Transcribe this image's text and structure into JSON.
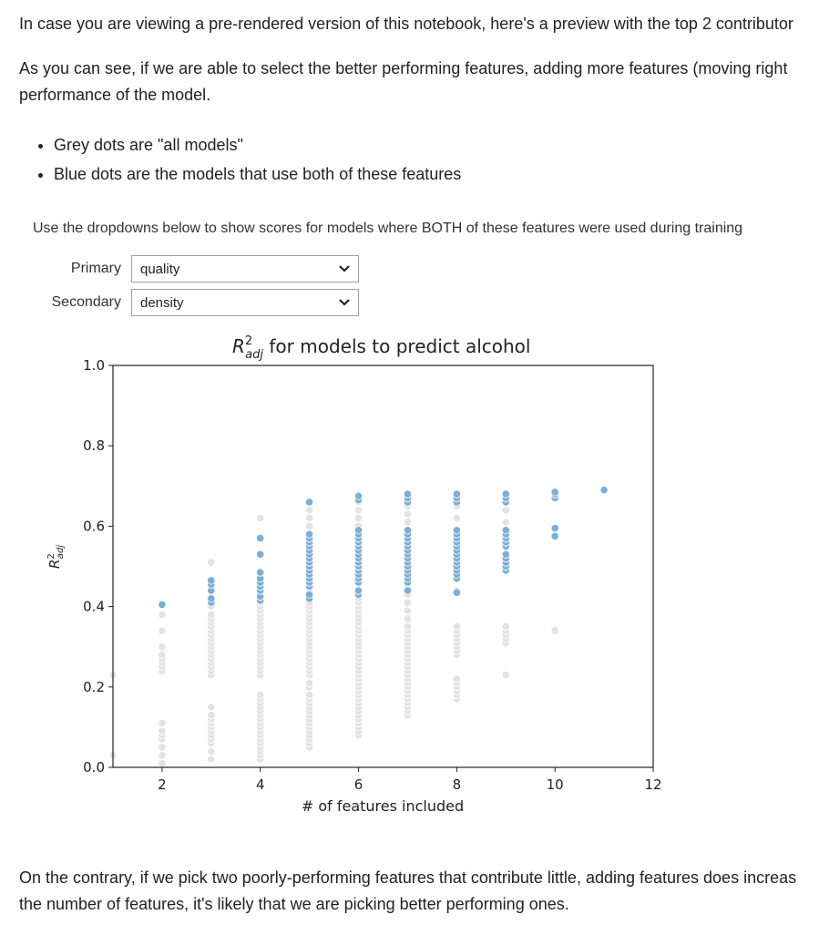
{
  "intro": "In case you are viewing a pre-rendered version of this notebook, here's a preview with the top 2 contributor",
  "view": {
    "line1": "As you can see, if we are able to select the better performing features, adding more features (moving right ",
    "line2": "performance of the model."
  },
  "bullets": [
    "Grey dots are \"all models\"",
    "Blue dots are the models that use both of these features"
  ],
  "widget": {
    "description": "Use the dropdowns below to show scores for models where BOTH of these features were used during training",
    "primary": {
      "label": "Primary",
      "value": "quality"
    },
    "secondary": {
      "label": "Secondary",
      "value": "density"
    }
  },
  "colors": {
    "blue_dot": "#7bafd8",
    "grey_dot": "#e3e3e3"
  },
  "chart_data": {
    "type": "scatter",
    "title_math": "R",
    "title_sup": "2",
    "title_sub": "adj",
    "title_rest": " for models to predict alcohol",
    "ylabel_main": "R",
    "ylabel_sup": "2",
    "ylabel_sub": "adj",
    "xlabel": "# of features included",
    "xlim": [
      1,
      12
    ],
    "ylim": [
      0,
      1
    ],
    "x_ticks": [
      "2",
      "4",
      "6",
      "8",
      "10",
      "12"
    ],
    "y_ticks": [
      "0.0",
      "0.2",
      "0.4",
      "0.6",
      "0.8",
      "1.0"
    ],
    "grid": false,
    "legend": "none",
    "series": [
      {
        "color_key": "grey_dot",
        "points_by_x": {
          "1": [
            0.03,
            0.23
          ],
          "2": [
            0.01,
            0.03,
            0.05,
            0.07,
            0.08,
            0.09,
            0.11,
            0.24,
            0.25,
            0.26,
            0.27,
            0.28,
            0.3,
            0.34,
            0.38
          ],
          "3": [
            0.02,
            0.04,
            0.06,
            0.07,
            0.08,
            0.09,
            0.1,
            0.11,
            0.12,
            0.13,
            0.15,
            0.23,
            0.24,
            0.25,
            0.26,
            0.27,
            0.28,
            0.29,
            0.3,
            0.31,
            0.32,
            0.33,
            0.34,
            0.35,
            0.36,
            0.37,
            0.38,
            0.4,
            0.51
          ],
          "4": [
            0.02,
            0.03,
            0.04,
            0.05,
            0.06,
            0.07,
            0.08,
            0.09,
            0.1,
            0.11,
            0.12,
            0.13,
            0.14,
            0.15,
            0.16,
            0.17,
            0.18,
            0.23,
            0.24,
            0.25,
            0.26,
            0.27,
            0.28,
            0.29,
            0.3,
            0.31,
            0.32,
            0.33,
            0.34,
            0.35,
            0.36,
            0.37,
            0.38,
            0.39,
            0.4,
            0.41,
            0.62
          ],
          "5": [
            0.05,
            0.06,
            0.07,
            0.08,
            0.09,
            0.1,
            0.11,
            0.12,
            0.13,
            0.14,
            0.15,
            0.16,
            0.17,
            0.18,
            0.2,
            0.21,
            0.23,
            0.24,
            0.25,
            0.26,
            0.27,
            0.28,
            0.29,
            0.3,
            0.31,
            0.32,
            0.33,
            0.34,
            0.35,
            0.36,
            0.37,
            0.38,
            0.39,
            0.4,
            0.41,
            0.42,
            0.44,
            0.46,
            0.48,
            0.5,
            0.52,
            0.54,
            0.56,
            0.58,
            0.6,
            0.62,
            0.64
          ],
          "6": [
            0.08,
            0.09,
            0.1,
            0.11,
            0.12,
            0.13,
            0.14,
            0.15,
            0.16,
            0.17,
            0.18,
            0.19,
            0.2,
            0.21,
            0.22,
            0.23,
            0.24,
            0.25,
            0.26,
            0.27,
            0.28,
            0.29,
            0.3,
            0.31,
            0.32,
            0.33,
            0.34,
            0.35,
            0.36,
            0.37,
            0.38,
            0.39,
            0.4,
            0.41,
            0.42,
            0.44,
            0.46,
            0.48,
            0.5,
            0.52,
            0.54,
            0.56,
            0.58,
            0.6,
            0.62,
            0.64,
            0.66
          ],
          "7": [
            0.13,
            0.14,
            0.15,
            0.16,
            0.17,
            0.18,
            0.19,
            0.2,
            0.21,
            0.22,
            0.23,
            0.24,
            0.25,
            0.26,
            0.27,
            0.28,
            0.29,
            0.3,
            0.31,
            0.32,
            0.33,
            0.34,
            0.35,
            0.37,
            0.39,
            0.41,
            0.43,
            0.45,
            0.47,
            0.49,
            0.51,
            0.53,
            0.55,
            0.57,
            0.59,
            0.61,
            0.63,
            0.65,
            0.67
          ],
          "8": [
            0.17,
            0.18,
            0.19,
            0.2,
            0.21,
            0.22,
            0.28,
            0.29,
            0.3,
            0.31,
            0.32,
            0.33,
            0.34,
            0.35,
            0.44,
            0.47,
            0.5,
            0.53,
            0.56,
            0.59,
            0.62,
            0.65,
            0.68
          ],
          "9": [
            0.23,
            0.31,
            0.32,
            0.33,
            0.34,
            0.35,
            0.52,
            0.55,
            0.58,
            0.61,
            0.64,
            0.67
          ],
          "10": [
            0.34,
            0.67,
            0.68
          ]
        }
      },
      {
        "color_key": "blue_dot",
        "points_by_x": {
          "2": [
            0.405
          ],
          "3": [
            0.41,
            0.42,
            0.44,
            0.455,
            0.465
          ],
          "4": [
            0.415,
            0.425,
            0.44,
            0.45,
            0.46,
            0.47,
            0.485,
            0.53,
            0.57
          ],
          "5": [
            0.42,
            0.43,
            0.45,
            0.46,
            0.47,
            0.48,
            0.49,
            0.5,
            0.51,
            0.52,
            0.53,
            0.54,
            0.55,
            0.56,
            0.57,
            0.58,
            0.66
          ],
          "6": [
            0.43,
            0.44,
            0.46,
            0.47,
            0.48,
            0.49,
            0.5,
            0.51,
            0.52,
            0.53,
            0.54,
            0.55,
            0.56,
            0.57,
            0.58,
            0.59,
            0.665,
            0.675
          ],
          "7": [
            0.44,
            0.46,
            0.47,
            0.48,
            0.49,
            0.5,
            0.51,
            0.52,
            0.53,
            0.54,
            0.55,
            0.56,
            0.57,
            0.58,
            0.59,
            0.66,
            0.67,
            0.68
          ],
          "8": [
            0.435,
            0.47,
            0.48,
            0.49,
            0.5,
            0.51,
            0.52,
            0.53,
            0.54,
            0.55,
            0.56,
            0.57,
            0.58,
            0.59,
            0.66,
            0.67,
            0.68
          ],
          "9": [
            0.49,
            0.5,
            0.51,
            0.52,
            0.53,
            0.55,
            0.56,
            0.57,
            0.58,
            0.59,
            0.66,
            0.67,
            0.68
          ],
          "10": [
            0.575,
            0.595,
            0.67,
            0.68,
            0.685
          ],
          "11": [
            0.69
          ]
        }
      }
    ]
  },
  "outro": {
    "line1": "On the contrary, if we pick two poorly-performing features that contribute little, adding features does increas",
    "line2": "the number of features, it's likely that we are picking better performing ones."
  }
}
